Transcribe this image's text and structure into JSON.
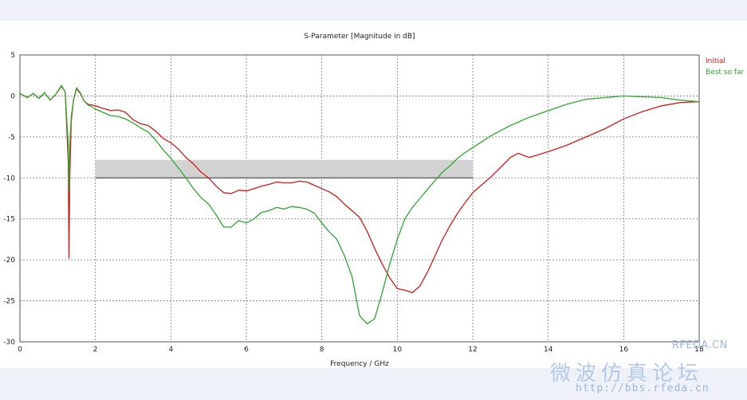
{
  "chart_data": {
    "type": "line",
    "title": "S-Parameter [Magnitude in dB]",
    "xlabel": "Frequency / GHz",
    "ylabel": "",
    "xlim": [
      0,
      18
    ],
    "ylim": [
      -30,
      5
    ],
    "xticks": [
      0,
      2,
      4,
      6,
      8,
      10,
      12,
      14,
      16,
      18
    ],
    "yticks": [
      5,
      0,
      -5,
      -10,
      -15,
      -20,
      -25,
      -30
    ],
    "grid": true,
    "legend_position": "right",
    "goal_region": {
      "x": [
        2,
        12
      ],
      "y": [
        -10,
        -7.8
      ]
    },
    "series": [
      {
        "name": "Initial",
        "color": "#d11a1a",
        "x": [
          0,
          0.2,
          0.35,
          0.5,
          0.65,
          0.8,
          0.95,
          1.1,
          1.2,
          1.28,
          1.3,
          1.32,
          1.36,
          1.42,
          1.5,
          1.6,
          1.7,
          1.8,
          1.9,
          2.0,
          2.2,
          2.4,
          2.6,
          2.8,
          3.0,
          3.2,
          3.4,
          3.6,
          3.8,
          4.0,
          4.2,
          4.4,
          4.6,
          4.8,
          5.0,
          5.2,
          5.4,
          5.6,
          5.8,
          6.0,
          6.2,
          6.4,
          6.6,
          6.8,
          7.0,
          7.2,
          7.4,
          7.6,
          7.8,
          8.0,
          8.2,
          8.4,
          8.6,
          8.8,
          9.0,
          9.2,
          9.4,
          9.6,
          9.8,
          10.0,
          10.2,
          10.4,
          10.6,
          10.8,
          11.0,
          11.2,
          11.4,
          11.6,
          11.8,
          12.0,
          12.5,
          13.0,
          13.2,
          13.5,
          14.0,
          14.5,
          15.0,
          15.5,
          16.0,
          16.5,
          17.0,
          17.5,
          18.0
        ],
        "values": [
          0.3,
          -0.2,
          0.3,
          -0.3,
          0.4,
          -0.5,
          0.2,
          1.2,
          0.5,
          -8,
          -19.8,
          -10,
          -3,
          -0.5,
          0.9,
          0.3,
          -0.6,
          -1.0,
          -1.1,
          -1.2,
          -1.5,
          -1.8,
          -1.7,
          -2.0,
          -2.9,
          -3.4,
          -3.6,
          -4.3,
          -5.2,
          -5.7,
          -6.5,
          -7.5,
          -8.3,
          -9.3,
          -10.0,
          -11.0,
          -11.8,
          -11.9,
          -11.5,
          -11.6,
          -11.3,
          -11.0,
          -10.8,
          -10.5,
          -10.6,
          -10.6,
          -10.4,
          -10.5,
          -10.9,
          -11.3,
          -11.7,
          -12.3,
          -13.2,
          -14.0,
          -14.8,
          -16.5,
          -18.6,
          -20.5,
          -22.2,
          -23.5,
          -23.7,
          -24.0,
          -23.2,
          -21.5,
          -19.5,
          -17.5,
          -15.8,
          -14.3,
          -13.0,
          -11.8,
          -9.8,
          -7.5,
          -7.0,
          -7.5,
          -6.8,
          -6.0,
          -5.0,
          -4.0,
          -2.8,
          -1.9,
          -1.2,
          -0.8,
          -0.7
        ]
      },
      {
        "name": "Best so far",
        "color": "#2ea82e",
        "x": [
          0,
          0.2,
          0.35,
          0.5,
          0.65,
          0.8,
          0.95,
          1.1,
          1.2,
          1.28,
          1.3,
          1.32,
          1.36,
          1.42,
          1.5,
          1.6,
          1.7,
          1.8,
          1.9,
          2.0,
          2.2,
          2.4,
          2.6,
          2.8,
          3.0,
          3.2,
          3.4,
          3.6,
          3.8,
          4.0,
          4.2,
          4.4,
          4.6,
          4.8,
          5.0,
          5.2,
          5.4,
          5.6,
          5.8,
          6.0,
          6.2,
          6.4,
          6.6,
          6.8,
          7.0,
          7.2,
          7.4,
          7.6,
          7.8,
          8.0,
          8.2,
          8.4,
          8.6,
          8.8,
          9.0,
          9.2,
          9.4,
          9.6,
          9.8,
          10.0,
          10.2,
          10.4,
          10.6,
          10.8,
          11.0,
          11.2,
          11.4,
          11.6,
          11.8,
          12.0,
          12.5,
          13.0,
          13.5,
          14.0,
          14.5,
          15.0,
          15.5,
          16.0,
          16.5,
          17.0,
          17.5,
          18.0
        ],
        "values": [
          0.3,
          -0.2,
          0.3,
          -0.3,
          0.4,
          -0.5,
          0.2,
          1.3,
          0.5,
          -6,
          -11.5,
          -6,
          -2.5,
          -0.5,
          1.0,
          0.4,
          -0.6,
          -1.1,
          -1.3,
          -1.6,
          -2.0,
          -2.4,
          -2.5,
          -2.8,
          -3.3,
          -3.9,
          -4.4,
          -5.4,
          -6.6,
          -7.6,
          -8.8,
          -10.0,
          -11.3,
          -12.4,
          -13.2,
          -14.5,
          -16.0,
          -16.0,
          -15.2,
          -15.5,
          -15.0,
          -14.2,
          -14.0,
          -13.6,
          -13.8,
          -13.5,
          -13.6,
          -13.8,
          -14.3,
          -15.5,
          -16.6,
          -17.5,
          -19.5,
          -22.0,
          -26.8,
          -27.8,
          -27.2,
          -24.0,
          -20.5,
          -17.5,
          -15.0,
          -13.6,
          -12.5,
          -11.4,
          -10.3,
          -9.3,
          -8.5,
          -7.6,
          -6.9,
          -6.3,
          -4.8,
          -3.6,
          -2.6,
          -1.8,
          -1.0,
          -0.4,
          -0.2,
          0.0,
          -0.1,
          -0.2,
          -0.5,
          -0.7
        ]
      }
    ]
  },
  "watermark": {
    "brand": "RFEDA.CN",
    "cn": "微波仿真论坛",
    "url": "http://bbs.rfeda.cn"
  }
}
